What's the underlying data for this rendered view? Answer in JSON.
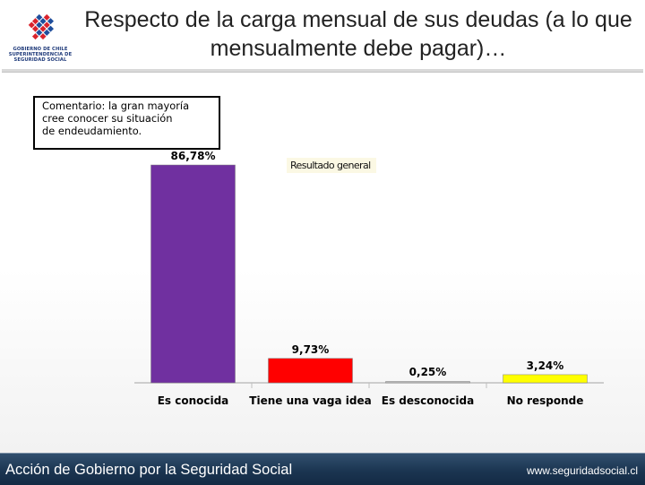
{
  "header": {
    "title": "Respecto de la carga mensual de sus deudas (a lo que mensualmente debe pagar)…",
    "logo": {
      "icon": "government-star-emblem",
      "lines": [
        "GOBIERNO DE CHILE",
        "SUPERINTENDENCIA DE",
        "SEGURIDAD SOCIAL"
      ]
    }
  },
  "comment": {
    "lines": [
      "Comentario: la gran mayoría",
      "cree conocer su situación",
      "de endeudamiento."
    ]
  },
  "legend_label": "Resultado general",
  "chart_data": {
    "type": "bar",
    "title": "Resultado general",
    "categories": [
      "Es conocida",
      "Tiene una vaga idea",
      "Es desconocida",
      "No responde"
    ],
    "values": [
      86.78,
      9.73,
      0.25,
      3.24
    ],
    "labels": [
      "86,78%",
      "9,73%",
      "0,25%",
      "3,24%"
    ],
    "colors": [
      "#7030a0",
      "#ff0000",
      "#c0c0c0",
      "#ffff00"
    ],
    "xlabel": "",
    "ylabel": "",
    "ylim": [
      0,
      100
    ],
    "grid": false
  },
  "footer": {
    "left": "Acción de Gobierno por la Seguridad Social",
    "right": "www.seguridadsocial.cl"
  }
}
